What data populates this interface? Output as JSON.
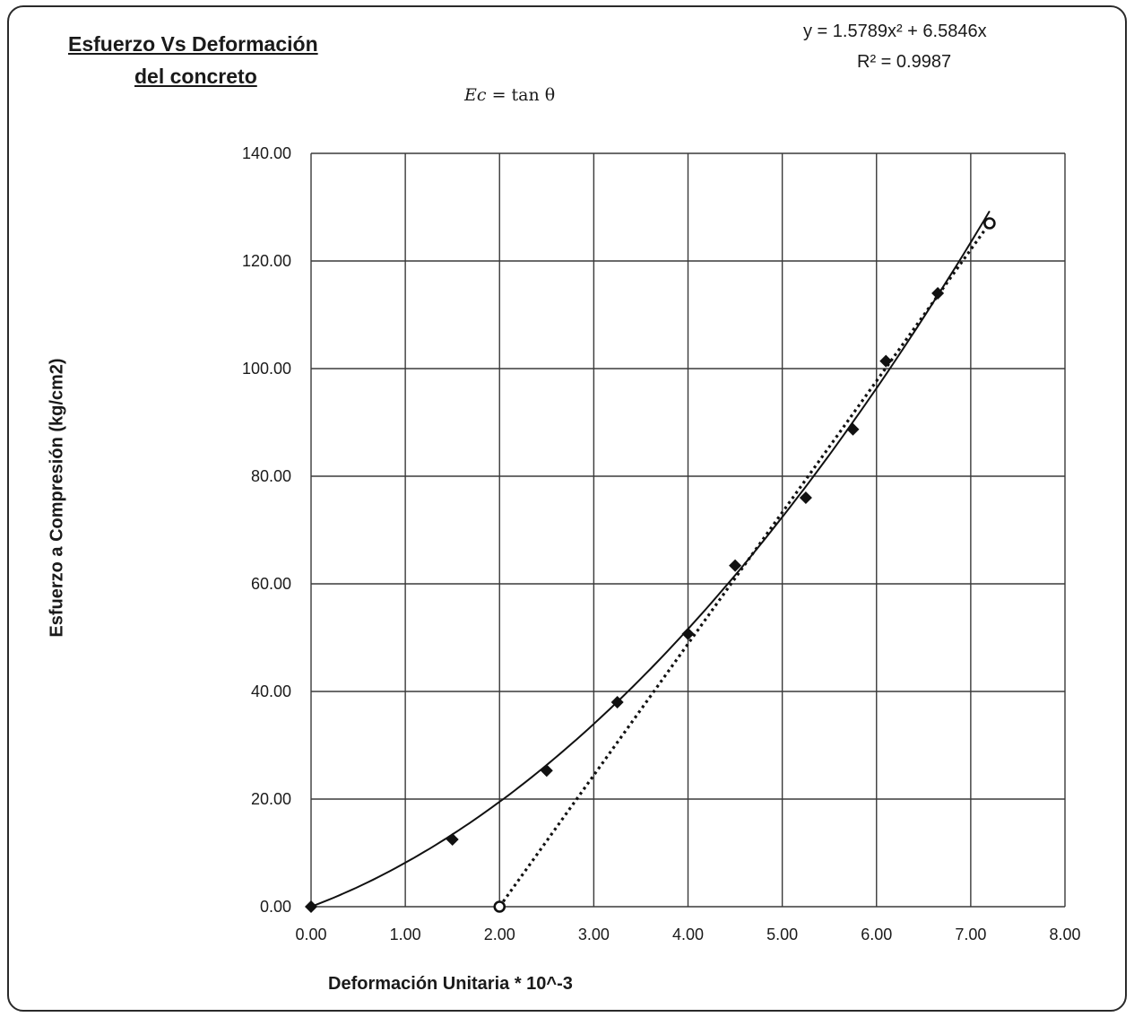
{
  "chart_data": {
    "type": "scatter",
    "title_line1": "Esfuerzo Vs Deformación",
    "title_line2": "del concreto",
    "xlabel": "Deformación Unitaria * 10^-3",
    "ylabel": "Esfuerzo a Compresión (kg/cm2)",
    "xlim": [
      0,
      8
    ],
    "ylim": [
      0,
      140
    ],
    "x_ticks": [
      "0.00",
      "1.00",
      "2.00",
      "3.00",
      "4.00",
      "5.00",
      "6.00",
      "7.00",
      "8.00"
    ],
    "y_ticks": [
      "0.00",
      "20.00",
      "40.00",
      "60.00",
      "80.00",
      "100.00",
      "120.00",
      "140.00"
    ],
    "grid": true,
    "series": [
      {
        "marker": "diamond",
        "x": [
          0.0,
          1.5,
          2.5,
          3.25,
          4.0,
          4.5,
          5.25,
          5.75,
          6.1,
          6.65
        ],
        "y": [
          0.0,
          12.5,
          25.3,
          38.0,
          50.7,
          63.4,
          76.0,
          88.7,
          101.4,
          114.0
        ]
      },
      {
        "marker": "open-circle",
        "line": "dotted",
        "x": [
          2.0,
          7.2
        ],
        "y": [
          0.0,
          127.0
        ]
      }
    ],
    "trendline": {
      "type": "polynomial",
      "coefficients": [
        1.5789,
        6.5846,
        0
      ],
      "x_range": [
        0,
        7.2
      ],
      "equation": "y = 1.5789x² + 6.5846x",
      "r2": "R² = 0.9987"
    },
    "annotation": {
      "lhs": "Ec",
      "rhs": "= tan θ"
    }
  }
}
